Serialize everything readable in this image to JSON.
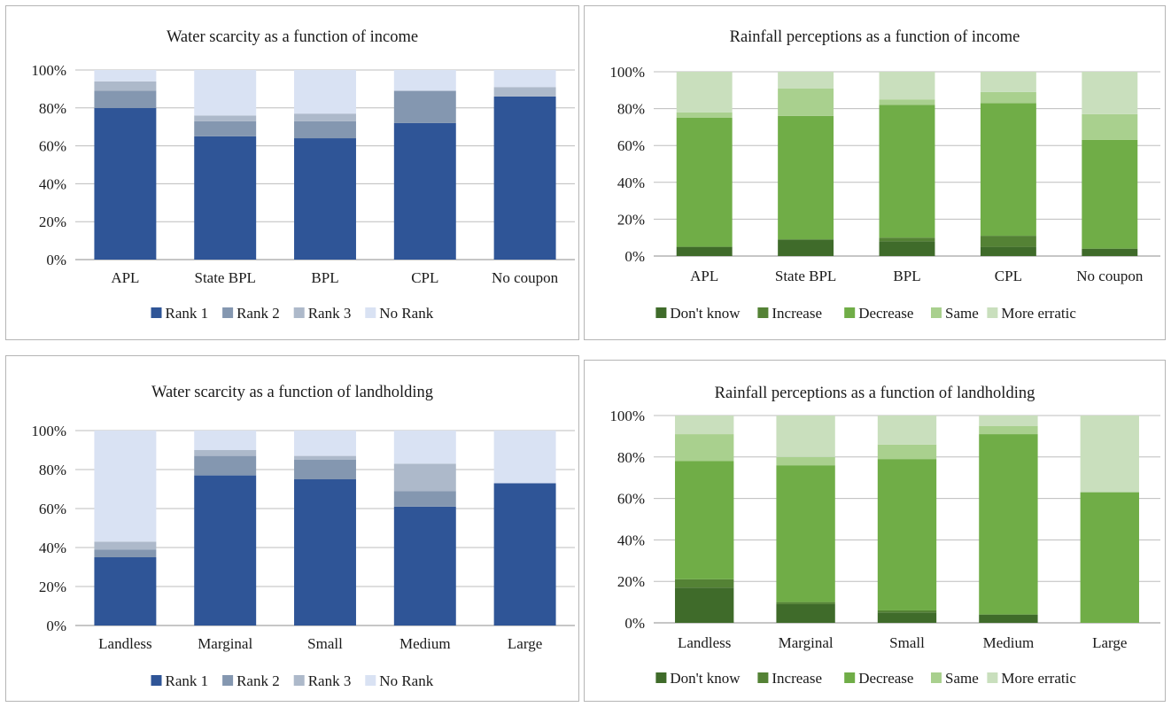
{
  "chart_data": [
    {
      "type": "bar",
      "stacked": true,
      "title": "Water scarcity as a function of income",
      "categories": [
        "APL",
        "State BPL",
        "BPL",
        "CPL",
        "No coupon"
      ],
      "yticks": [
        "0%",
        "20%",
        "40%",
        "60%",
        "80%",
        "100%"
      ],
      "ylim": [
        0,
        100
      ],
      "grid": true,
      "legend_position": "bottom",
      "series": [
        {
          "name": "Rank 1",
          "color": "#2f5597",
          "values": [
            80,
            65,
            64,
            72,
            86
          ]
        },
        {
          "name": "Rank 2",
          "color": "#8497b0",
          "values": [
            9,
            8,
            9,
            17,
            0
          ]
        },
        {
          "name": "Rank 3",
          "color": "#adb9ca",
          "values": [
            5,
            3,
            4,
            0,
            5
          ]
        },
        {
          "name": "No Rank",
          "color": "#d9e2f3",
          "values": [
            6,
            24,
            23,
            11,
            9
          ]
        }
      ]
    },
    {
      "type": "bar",
      "stacked": true,
      "title": "Rainfall perceptions as a function of income",
      "categories": [
        "APL",
        "State BPL",
        "BPL",
        "CPL",
        "No coupon"
      ],
      "yticks": [
        "0%",
        "20%",
        "40%",
        "60%",
        "80%",
        "100%"
      ],
      "ylim": [
        0,
        100
      ],
      "grid": true,
      "legend_position": "bottom",
      "series": [
        {
          "name": "Don't know",
          "color": "#3f6b2a",
          "values": [
            5,
            9,
            8,
            5,
            4
          ]
        },
        {
          "name": "Increase",
          "color": "#548235",
          "values": [
            0,
            0,
            2,
            6,
            0
          ]
        },
        {
          "name": "Decrease",
          "color": "#70ad47",
          "values": [
            70,
            67,
            72,
            72,
            59
          ]
        },
        {
          "name": "Same",
          "color": "#a9d08e",
          "values": [
            3,
            15,
            3,
            6,
            14
          ]
        },
        {
          "name": "More erratic",
          "color": "#c9dfbd",
          "values": [
            22,
            9,
            15,
            11,
            23
          ]
        }
      ]
    },
    {
      "type": "bar",
      "stacked": true,
      "title": "Water scarcity as a function of landholding",
      "categories": [
        "Landless",
        "Marginal",
        "Small",
        "Medium",
        "Large"
      ],
      "yticks": [
        "0%",
        "20%",
        "40%",
        "60%",
        "80%",
        "100%"
      ],
      "ylim": [
        0,
        100
      ],
      "grid": true,
      "legend_position": "bottom",
      "series": [
        {
          "name": "Rank 1",
          "color": "#2f5597",
          "values": [
            35,
            77,
            75,
            61,
            73
          ]
        },
        {
          "name": "Rank 2",
          "color": "#8497b0",
          "values": [
            4,
            10,
            10,
            8,
            0
          ]
        },
        {
          "name": "Rank 3",
          "color": "#adb9ca",
          "values": [
            4,
            3,
            2,
            14,
            0
          ]
        },
        {
          "name": "No Rank",
          "color": "#d9e2f3",
          "values": [
            57,
            10,
            13,
            17,
            27
          ]
        }
      ]
    },
    {
      "type": "bar",
      "stacked": true,
      "title": "Rainfall perceptions as a function of landholding",
      "categories": [
        "Landless",
        "Marginal",
        "Small",
        "Medium",
        "Large"
      ],
      "yticks": [
        "0%",
        "20%",
        "40%",
        "60%",
        "80%",
        "100%"
      ],
      "ylim": [
        0,
        100
      ],
      "grid": true,
      "legend_position": "bottom",
      "series": [
        {
          "name": "Don't know",
          "color": "#3f6b2a",
          "values": [
            17,
            9,
            5,
            4,
            0
          ]
        },
        {
          "name": "Increase",
          "color": "#548235",
          "values": [
            4,
            1,
            1,
            0,
            0
          ]
        },
        {
          "name": "Decrease",
          "color": "#70ad47",
          "values": [
            57,
            66,
            73,
            87,
            63
          ]
        },
        {
          "name": "Same",
          "color": "#a9d08e",
          "values": [
            13,
            4,
            7,
            4,
            0
          ]
        },
        {
          "name": "More erratic",
          "color": "#c9dfbd",
          "values": [
            9,
            20,
            14,
            5,
            37
          ]
        }
      ]
    }
  ]
}
